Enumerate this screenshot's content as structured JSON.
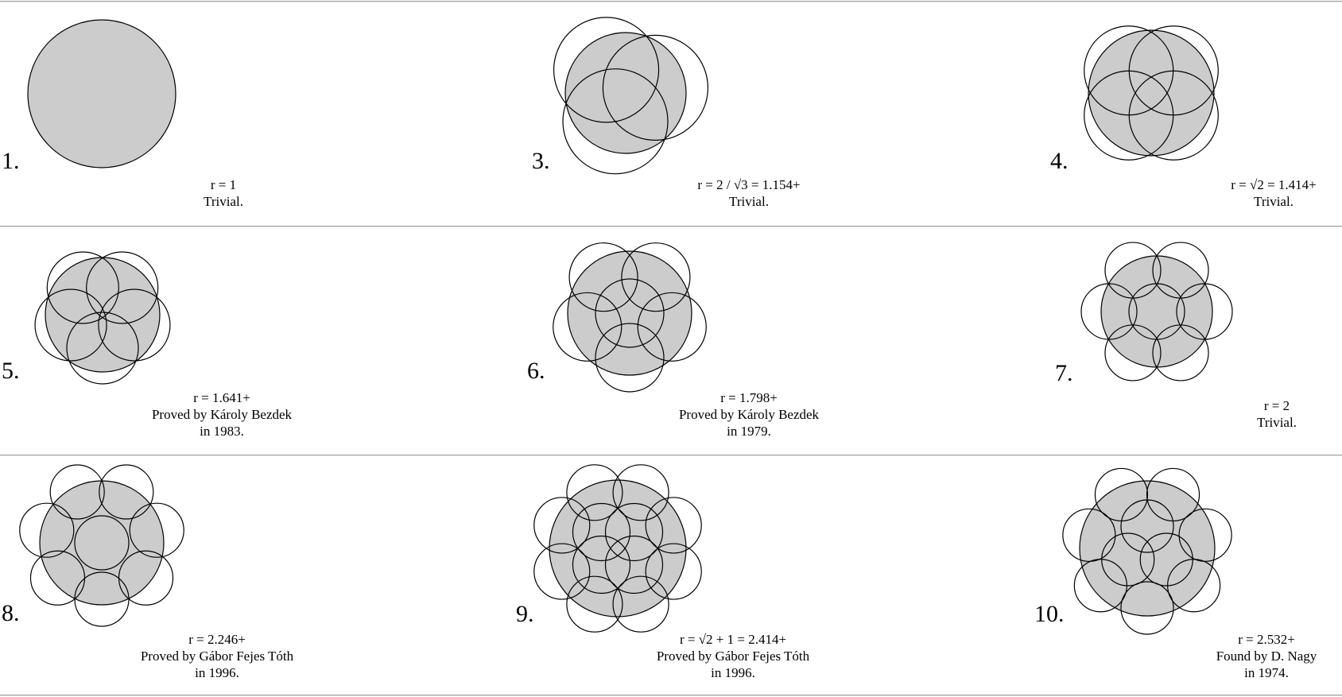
{
  "colors": {
    "disk_fill": "#cccccc",
    "stroke": "#000000",
    "background": "#ffffff",
    "rule": "#a0a0a0"
  },
  "items": [
    {
      "number": "1.",
      "radius_text": "r = 1",
      "lines": [
        "Trivial."
      ]
    },
    {
      "number": "3.",
      "radius_text": "r = 2 / √3 = 1.154+",
      "lines": [
        "Trivial."
      ]
    },
    {
      "number": "4.",
      "radius_text": "r = √2 = 1.414+",
      "lines": [
        "Trivial."
      ]
    },
    {
      "number": "5.",
      "radius_text": "r = 1.641+",
      "lines": [
        "Proved by Károly Bezdek",
        "in 1983."
      ]
    },
    {
      "number": "6.",
      "radius_text": "r = 1.798+",
      "lines": [
        "Proved by Károly Bezdek",
        "in 1979."
      ]
    },
    {
      "number": "7.",
      "radius_text": "r = 2",
      "lines": [
        "Trivial."
      ]
    },
    {
      "number": "8.",
      "radius_text": "r = 2.246+",
      "lines": [
        "Proved by Gábor Fejes Tóth",
        "in 1996."
      ]
    },
    {
      "number": "9.",
      "radius_text": "r = √2 + 1 = 2.414+",
      "lines": [
        "Proved by Gábor Fejes Tóth",
        "in 1996."
      ]
    },
    {
      "number": "10.",
      "radius_text": "r = 2.532+",
      "lines": [
        "Found by D. Nagy",
        "in 1974."
      ]
    }
  ]
}
